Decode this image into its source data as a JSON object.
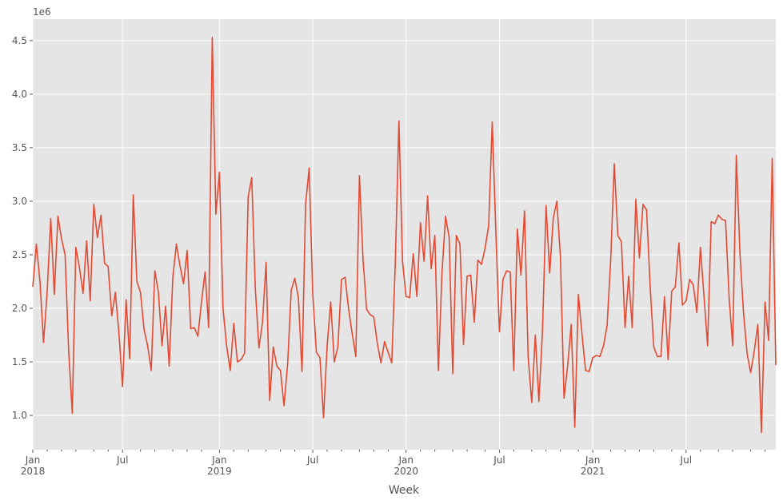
{
  "chart_data": {
    "type": "line",
    "style": "ggplot",
    "xlabel": "Week",
    "ylabel": "",
    "y_offset_label": "1e6",
    "grid": true,
    "colors": {
      "line": "#E24A33",
      "background": "#E5E5E5",
      "grid": "#FFFFFF",
      "text": "#555555"
    },
    "ylim": [
      680000,
      4700000
    ],
    "xlim": [
      "2018-01-07",
      "2021-12-26"
    ],
    "y_ticks": [
      {
        "value": 1000000,
        "label": "1.0"
      },
      {
        "value": 1500000,
        "label": "1.5"
      },
      {
        "value": 2000000,
        "label": "2.0"
      },
      {
        "value": 2500000,
        "label": "2.5"
      },
      {
        "value": 3000000,
        "label": "3.0"
      },
      {
        "value": 3500000,
        "label": "3.5"
      },
      {
        "value": 4000000,
        "label": "4.0"
      },
      {
        "value": 4500000,
        "label": "4.5"
      }
    ],
    "x_major_ticks": [
      {
        "date": "2018-01-07",
        "label": "Jan",
        "year": "2018"
      },
      {
        "date": "2018-07-01",
        "label": "Jul",
        "year": ""
      },
      {
        "date": "2019-01-06",
        "label": "Jan",
        "year": "2019"
      },
      {
        "date": "2019-07-07",
        "label": "Jul",
        "year": ""
      },
      {
        "date": "2020-01-05",
        "label": "Jan",
        "year": "2020"
      },
      {
        "date": "2020-07-05",
        "label": "Jul",
        "year": ""
      },
      {
        "date": "2021-01-03",
        "label": "Jan",
        "year": "2021"
      },
      {
        "date": "2021-07-04",
        "label": "Jul",
        "year": ""
      }
    ],
    "x_minor_ticks": [
      "2018-02-04",
      "2018-03-04",
      "2018-04-01",
      "2018-05-06",
      "2018-06-03",
      "2018-08-05",
      "2018-09-02",
      "2018-10-07",
      "2018-11-04",
      "2018-12-02",
      "2019-02-03",
      "2019-03-03",
      "2019-04-07",
      "2019-05-05",
      "2019-06-02",
      "2019-08-04",
      "2019-09-01",
      "2019-10-06",
      "2019-11-03",
      "2019-12-01",
      "2020-02-02",
      "2020-03-01",
      "2020-04-05",
      "2020-05-03",
      "2020-06-07",
      "2020-08-02",
      "2020-09-06",
      "2020-10-04",
      "2020-11-01",
      "2020-12-06",
      "2021-02-07",
      "2021-03-07",
      "2021-04-04",
      "2021-05-02",
      "2021-06-06",
      "2021-08-01",
      "2021-09-05",
      "2021-10-03",
      "2021-11-07",
      "2021-12-05"
    ],
    "start_date": "2018-01-07",
    "interval_days": 7,
    "values": [
      2200000,
      2600000,
      2250000,
      1680000,
      2150000,
      2840000,
      2130000,
      2860000,
      2650000,
      2500000,
      1600000,
      1020000,
      2570000,
      2380000,
      2140000,
      2630000,
      2070000,
      2970000,
      2660000,
      2870000,
      2420000,
      2390000,
      1930000,
      2150000,
      1770000,
      1270000,
      2080000,
      1530000,
      3060000,
      2250000,
      2150000,
      1800000,
      1650000,
      1420000,
      2350000,
      2150000,
      1650000,
      2020000,
      1460000,
      2280000,
      2600000,
      2400000,
      2230000,
      2540000,
      1810000,
      1820000,
      1740000,
      2060000,
      2340000,
      1820000,
      4530000,
      2880000,
      3270000,
      2000000,
      1650000,
      1420000,
      1860000,
      1500000,
      1520000,
      1580000,
      3040000,
      3220000,
      2180000,
      1630000,
      1870000,
      2430000,
      1140000,
      1640000,
      1460000,
      1420000,
      1090000,
      1480000,
      2170000,
      2280000,
      2100000,
      1410000,
      2970000,
      3310000,
      2130000,
      1590000,
      1540000,
      980000,
      1650000,
      2060000,
      1500000,
      1640000,
      2270000,
      2290000,
      1990000,
      1760000,
      1550000,
      3240000,
      2460000,
      1990000,
      1940000,
      1920000,
      1670000,
      1490000,
      1690000,
      1590000,
      1490000,
      2430000,
      3750000,
      2440000,
      2110000,
      2100000,
      2510000,
      2110000,
      2800000,
      2440000,
      3050000,
      2370000,
      2680000,
      1420000,
      2330000,
      2860000,
      2660000,
      1390000,
      2680000,
      2600000,
      1660000,
      2300000,
      2310000,
      1870000,
      2450000,
      2410000,
      2560000,
      2770000,
      3740000,
      2720000,
      1780000,
      2270000,
      2350000,
      2340000,
      1420000,
      2740000,
      2310000,
      2910000,
      1550000,
      1120000,
      1750000,
      1130000,
      1790000,
      2960000,
      2330000,
      2840000,
      3000000,
      2480000,
      1160000,
      1460000,
      1850000,
      890000,
      2130000,
      1760000,
      1420000,
      1410000,
      1540000,
      1560000,
      1550000,
      1650000,
      1840000,
      2450000,
      3350000,
      2680000,
      2620000,
      1820000,
      2300000,
      1820000,
      3020000,
      2470000,
      2970000,
      2920000,
      2200000,
      1640000,
      1550000,
      1550000,
      2110000,
      1520000,
      2160000,
      2200000,
      2610000,
      2030000,
      2070000,
      2270000,
      2220000,
      1960000,
      2570000,
      2110000,
      1650000,
      2810000,
      2790000,
      2870000,
      2830000,
      2820000,
      2100000,
      1650000,
      3430000,
      2520000,
      1960000,
      1580000,
      1400000,
      1600000,
      1850000,
      840000,
      2060000,
      1700000,
      3400000,
      1470000
    ]
  }
}
